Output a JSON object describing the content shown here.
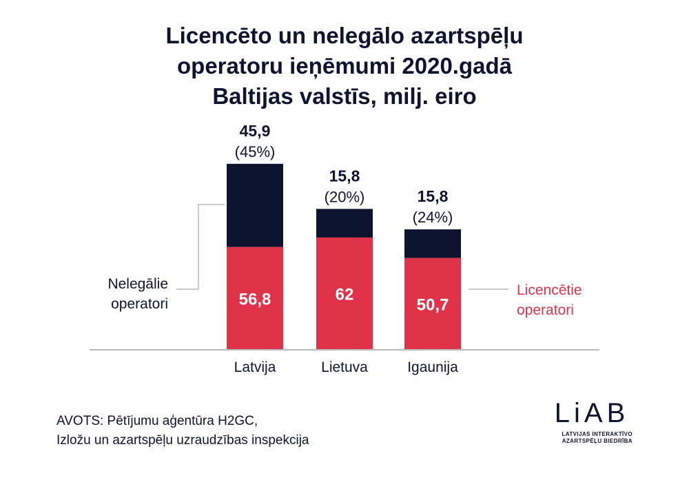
{
  "title": {
    "line1": "Licencēto un nelegālo azartspēļu",
    "line2": "operatoru ieņēmumi 2020.gadā",
    "line3": "Baltijas valstīs, milj. eiro"
  },
  "legend": {
    "illegal": {
      "line1": "Nelegālie",
      "line2": "operatori"
    },
    "licensed": {
      "line1": "Licencētie",
      "line2": "operatori"
    }
  },
  "chart_data": {
    "type": "bar",
    "stacked": true,
    "categories": [
      "Latvija",
      "Lietuva",
      "Igaunija"
    ],
    "series": [
      {
        "name": "Licencētie operatori",
        "values": [
          56.8,
          62,
          50.7
        ],
        "labels": [
          "56,8",
          "62",
          "50,7"
        ],
        "color": "#e0334a"
      },
      {
        "name": "Nelegālie operatori",
        "values": [
          45.9,
          15.8,
          15.8
        ],
        "labels": [
          "45,9",
          "15,8",
          "15,8"
        ],
        "shares": [
          "(45%)",
          "(20%)",
          "(24%)"
        ],
        "color": "#0e1430"
      }
    ],
    "ylim": [
      0,
      110
    ],
    "grid": false,
    "colors": {
      "licensed_label": "#e0334a",
      "axis": "#b9b9b9",
      "text": "#0e1430"
    }
  },
  "source": {
    "line1": "AVOTS: Pētījumu aģentūra H2GC,",
    "line2": "Izložu un azartspēļu uzraudzības inspekcija"
  },
  "logo": {
    "text": "LiAB",
    "subline1": "LATVIJAS INTERAKTĪVO",
    "subline2": "AZARTSPĒĻU BIEDRĪBA"
  }
}
